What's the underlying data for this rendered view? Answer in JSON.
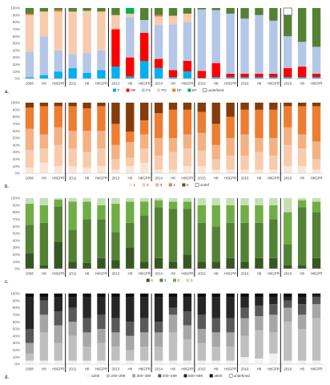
{
  "chart_data": [
    {
      "panel_label": "a.",
      "type": "bar",
      "stacked": true,
      "categories": [
        "2008",
        "H8",
        "H8GPR",
        "2011",
        "H8",
        "H8GPR",
        "2013",
        "H8",
        "H8GPR",
        "2014",
        "H8",
        "H8GPR",
        "2015",
        "H8",
        "H8GPR",
        "2016",
        "H8",
        "H8GPR",
        "2019",
        "H8",
        "H8GPR"
      ],
      "separators_after": [
        2,
        5,
        8,
        11,
        14,
        17
      ],
      "ylim": [
        0,
        100
      ],
      "yticks": [
        "0%",
        "10%",
        "20%",
        "30%",
        "40%",
        "50%",
        "60%",
        "70%",
        "80%",
        "90%",
        "100%"
      ],
      "series": [
        {
          "name": "F",
          "color": "#00b0f0",
          "values": [
            2,
            5,
            10,
            15,
            8,
            12,
            17,
            3,
            25,
            15,
            2,
            10,
            1,
            2,
            2,
            2,
            2,
            2,
            2,
            2,
            2
          ]
        },
        {
          "name": "MF",
          "color": "#ff0000",
          "values": [
            0,
            0,
            0,
            0,
            0,
            0,
            53,
            27,
            40,
            13,
            10,
            15,
            10,
            20,
            5,
            5,
            5,
            5,
            13,
            15,
            5
          ]
        },
        {
          "name": "FS",
          "color": "#b4c7e7",
          "values": [
            36,
            55,
            30,
            20,
            28,
            28,
            0,
            57,
            18,
            48,
            65,
            55,
            87,
            75,
            85,
            78,
            83,
            75,
            45,
            35,
            38
          ]
        },
        {
          "name": "FG",
          "color": "#f8cbad",
          "values": [
            52,
            35,
            55,
            60,
            60,
            55,
            20,
            5,
            0,
            12,
            12,
            12,
            0,
            0,
            0,
            0,
            0,
            0,
            0,
            0,
            0
          ]
        },
        {
          "name": "DF",
          "color": "#ed7d31",
          "values": [
            2,
            0,
            2,
            0,
            0,
            0,
            0,
            0,
            0,
            2,
            0,
            0,
            0,
            0,
            0,
            0,
            0,
            0,
            0,
            0,
            0
          ]
        },
        {
          "name": "EF",
          "color": "#00b050",
          "values": [
            0,
            0,
            0,
            0,
            0,
            0,
            0,
            8,
            0,
            0,
            0,
            0,
            0,
            0,
            0,
            0,
            0,
            0,
            0,
            0,
            0
          ]
        },
        {
          "name": "",
          "color": "#548235",
          "values": [
            8,
            5,
            3,
            5,
            4,
            5,
            10,
            0,
            17,
            10,
            11,
            8,
            2,
            3,
            8,
            15,
            10,
            18,
            30,
            48,
            55
          ]
        },
        {
          "name": "undefined",
          "color": "#ffffff",
          "values": [
            0,
            0,
            0,
            0,
            0,
            0,
            0,
            0,
            0,
            0,
            0,
            0,
            0,
            0,
            0,
            0,
            0,
            0,
            10,
            0,
            0
          ]
        }
      ]
    },
    {
      "panel_label": "b.",
      "type": "bar",
      "stacked": true,
      "categories": [
        "2008",
        "H8",
        "H8GPR",
        "2011",
        "H8",
        "H8GPR",
        "2013",
        "H8",
        "H8GPR",
        "2014",
        "H8",
        "H8GPR",
        "2015",
        "H8",
        "H8GPR",
        "2016",
        "H8",
        "H8GPR",
        "2019",
        "H8",
        "H8GPR"
      ],
      "separators_after": [
        2,
        5,
        8,
        11,
        14,
        17
      ],
      "ylim": [
        0,
        100
      ],
      "yticks": [
        "0%",
        "10%",
        "20%",
        "30%",
        "40%",
        "50%",
        "60%",
        "70%",
        "80%",
        "90%",
        "100%"
      ],
      "series": [
        {
          "name": "1",
          "color": "#fbe5d6",
          "values": [
            8,
            15,
            10,
            10,
            8,
            10,
            5,
            10,
            15,
            5,
            5,
            10,
            10,
            5,
            5,
            5,
            5,
            5,
            10,
            10,
            5
          ]
        },
        {
          "name": "2",
          "color": "#f8cbad",
          "values": [
            25,
            20,
            30,
            25,
            22,
            25,
            15,
            12,
            20,
            20,
            25,
            25,
            22,
            15,
            20,
            20,
            25,
            20,
            30,
            25,
            15
          ]
        },
        {
          "name": "3",
          "color": "#f4b183",
          "values": [
            30,
            20,
            25,
            25,
            30,
            25,
            20,
            22,
            20,
            25,
            20,
            20,
            25,
            20,
            25,
            30,
            20,
            25,
            25,
            20,
            25
          ]
        },
        {
          "name": "4",
          "color": "#ed7d31",
          "values": [
            30,
            40,
            30,
            35,
            32,
            35,
            30,
            15,
            20,
            35,
            40,
            35,
            30,
            30,
            30,
            35,
            40,
            40,
            30,
            40,
            50
          ]
        },
        {
          "name": "5",
          "color": "#843c0c",
          "values": [
            7,
            5,
            5,
            5,
            8,
            5,
            30,
            41,
            25,
            15,
            10,
            10,
            13,
            30,
            20,
            10,
            10,
            10,
            5,
            5,
            5
          ]
        },
        {
          "name": "undef",
          "color": "#ffffff",
          "values": [
            0,
            0,
            0,
            0,
            0,
            0,
            0,
            0,
            0,
            0,
            0,
            0,
            0,
            0,
            0,
            0,
            0,
            0,
            0,
            0,
            0
          ]
        }
      ]
    },
    {
      "panel_label": "c.",
      "type": "bar",
      "stacked": true,
      "categories": [
        "2008",
        "H8",
        "H8GPR",
        "2011",
        "H8",
        "H8GPR",
        "2013",
        "H8",
        "H8GPR",
        "2014",
        "H8",
        "H8GPR",
        "2015",
        "H8",
        "H8GPR",
        "2016",
        "H8",
        "H8GPR",
        "2019",
        "H8",
        "H8GPR"
      ],
      "separators_after": [
        2,
        5,
        8,
        11,
        14,
        17
      ],
      "ylim": [
        0,
        100
      ],
      "yticks": [
        "0%",
        "10%",
        "20%",
        "30%",
        "40%",
        "50%",
        "60%",
        "70%",
        "80%",
        "90%",
        "100%"
      ],
      "series": [
        {
          "name": "4",
          "color": "#375623",
          "values": [
            22,
            5,
            38,
            10,
            8,
            15,
            12,
            30,
            10,
            15,
            10,
            20,
            10,
            10,
            15,
            10,
            15,
            15,
            5,
            5,
            15
          ]
        },
        {
          "name": "3",
          "color": "#548235",
          "values": [
            40,
            60,
            50,
            45,
            62,
            55,
            40,
            35,
            65,
            72,
            75,
            65,
            55,
            50,
            50,
            55,
            50,
            55,
            30,
            82,
            65
          ]
        },
        {
          "name": "2",
          "color": "#70ad47",
          "values": [
            30,
            25,
            10,
            40,
            25,
            20,
            40,
            30,
            20,
            10,
            10,
            10,
            25,
            30,
            25,
            25,
            25,
            20,
            45,
            10,
            15
          ]
        },
        {
          "name": "1",
          "color": "#c5e0b4",
          "values": [
            8,
            10,
            2,
            5,
            5,
            10,
            8,
            5,
            5,
            3,
            5,
            5,
            10,
            10,
            10,
            10,
            10,
            10,
            20,
            3,
            5
          ]
        }
      ]
    },
    {
      "panel_label": "d.",
      "type": "bar",
      "stacked": true,
      "categories": [
        "2008",
        "H8",
        "H8GPR",
        "2011",
        "H8",
        "H8GPR",
        "2013",
        "H8",
        "H8GPR",
        "2014",
        "H8",
        "H8GPR",
        "2015",
        "H8",
        "H8GPR",
        "2016",
        "H8",
        "H8GPR",
        "2019",
        "H8",
        "H8GPR"
      ],
      "separators_after": [
        2,
        5,
        8,
        11,
        14,
        17
      ],
      "ylim": [
        0,
        100
      ],
      "yticks": [
        "0%",
        "10%",
        "20%",
        "30%",
        "40%",
        "50%",
        "60%",
        "70%",
        "80%",
        "90%",
        "100%"
      ],
      "series": [
        {
          "name": "≤200",
          "color": "#f2f2f2",
          "values": [
            5,
            5,
            5,
            5,
            5,
            5,
            5,
            5,
            5,
            5,
            5,
            5,
            5,
            5,
            5,
            10,
            8,
            15,
            5,
            5,
            5
          ]
        },
        {
          "name": "200–299",
          "color": "#bfbfbf",
          "values": [
            10,
            40,
            25,
            35,
            20,
            25,
            20,
            15,
            20,
            20,
            40,
            30,
            25,
            20,
            20,
            30,
            40,
            30,
            55,
            45,
            60
          ]
        },
        {
          "name": "300–399",
          "color": "#a6a6a6",
          "values": [
            15,
            25,
            25,
            20,
            20,
            20,
            20,
            20,
            20,
            20,
            25,
            20,
            20,
            20,
            20,
            25,
            20,
            25,
            20,
            20,
            20
          ]
        },
        {
          "name": "400–499",
          "color": "#595959",
          "values": [
            20,
            20,
            20,
            20,
            20,
            20,
            20,
            20,
            20,
            15,
            10,
            20,
            20,
            20,
            20,
            15,
            15,
            15,
            10,
            15,
            10
          ]
        },
        {
          "name": "500–599",
          "color": "#262626",
          "values": [
            45,
            5,
            20,
            15,
            30,
            25,
            30,
            35,
            30,
            35,
            15,
            20,
            25,
            30,
            30,
            15,
            12,
            10,
            5,
            10,
            2
          ]
        },
        {
          "name": "≥600",
          "color": "#0d0d0d",
          "values": [
            5,
            5,
            5,
            5,
            5,
            5,
            5,
            5,
            5,
            5,
            5,
            5,
            5,
            5,
            5,
            5,
            5,
            5,
            5,
            5,
            3
          ]
        },
        {
          "name": "undefined",
          "color": "#ffffff",
          "values": [
            0,
            0,
            0,
            0,
            0,
            0,
            0,
            0,
            0,
            0,
            0,
            0,
            0,
            0,
            0,
            0,
            0,
            0,
            0,
            0,
            0
          ]
        }
      ]
    }
  ]
}
